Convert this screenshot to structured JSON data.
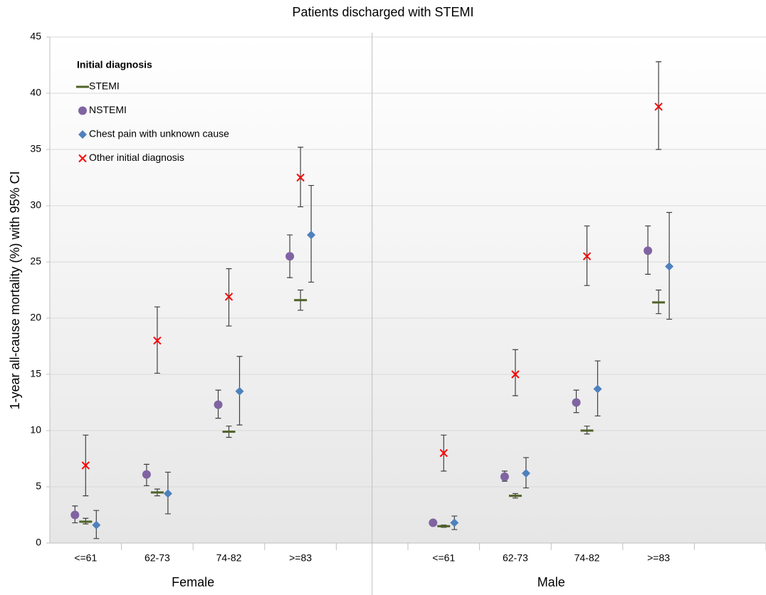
{
  "chart_data": {
    "type": "errorbar",
    "title": "Patients discharged with STEMI",
    "y_label": "1-year all-cause mortality (%) with 95% CI",
    "categories": [
      "<=61",
      "62-73",
      "74-82",
      ">=83",
      null,
      "<=61",
      "62-73",
      "74-82",
      ">=83",
      null
    ],
    "groups": [
      "Female",
      "Male"
    ],
    "legend_title": "Initial diagnosis",
    "legend_position": "upper left",
    "grid": true,
    "ylim": [
      0,
      45
    ],
    "yticks": [
      0,
      5,
      10,
      15,
      20,
      25,
      30,
      35,
      40,
      45
    ],
    "series": [
      {
        "name": "STEMI",
        "color": "#4f6228",
        "marker": "dash",
        "values": [
          1.9,
          4.5,
          9.9,
          21.6,
          null,
          1.5,
          4.2,
          10.0,
          21.4,
          null
        ],
        "lower": [
          1.7,
          4.2,
          9.4,
          20.7,
          null,
          1.4,
          4.0,
          9.7,
          20.4,
          null
        ],
        "upper": [
          2.2,
          4.8,
          10.4,
          22.5,
          null,
          1.6,
          4.4,
          10.4,
          22.5,
          null
        ]
      },
      {
        "name": "NSTEMI",
        "color": "#8064a2",
        "marker": "circle",
        "values": [
          2.5,
          6.1,
          12.3,
          25.5,
          null,
          1.8,
          5.9,
          12.5,
          26.0,
          null
        ],
        "lower": [
          1.8,
          5.1,
          11.1,
          23.6,
          null,
          1.6,
          5.5,
          11.6,
          23.9,
          null
        ],
        "upper": [
          3.3,
          7.0,
          13.6,
          27.4,
          null,
          2.0,
          6.4,
          13.6,
          28.2,
          null
        ]
      },
      {
        "name": "Chest pain with unknown cause",
        "color": "#4f81bd",
        "marker": "diamond",
        "values": [
          1.6,
          4.4,
          13.5,
          27.4,
          null,
          1.8,
          6.2,
          13.7,
          24.6,
          null
        ],
        "lower": [
          0.4,
          2.6,
          10.5,
          23.2,
          null,
          1.2,
          4.9,
          11.3,
          19.9,
          null
        ],
        "upper": [
          2.9,
          6.3,
          16.6,
          31.8,
          null,
          2.4,
          7.6,
          16.2,
          29.4,
          null
        ]
      },
      {
        "name": "Other initial diagnosis",
        "color": "#ff0000",
        "marker": "x",
        "values": [
          6.9,
          18.0,
          21.9,
          32.5,
          null,
          8.0,
          15.0,
          25.5,
          38.8,
          null
        ],
        "lower": [
          4.2,
          15.1,
          19.3,
          29.9,
          null,
          6.4,
          13.1,
          22.9,
          35.0,
          null
        ],
        "upper": [
          9.6,
          21.0,
          24.4,
          35.2,
          null,
          9.6,
          17.2,
          28.2,
          42.8,
          null
        ]
      }
    ]
  }
}
